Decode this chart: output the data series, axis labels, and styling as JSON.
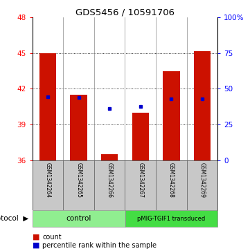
{
  "title": "GDS5456 / 10591706",
  "samples": [
    "GSM1342264",
    "GSM1342265",
    "GSM1342266",
    "GSM1342267",
    "GSM1342268",
    "GSM1342269"
  ],
  "count_values": [
    45.0,
    41.5,
    36.5,
    40.0,
    43.5,
    45.2
  ],
  "percentile_values": [
    41.35,
    41.25,
    40.35,
    40.5,
    41.15,
    41.15
  ],
  "y_min": 36,
  "y_max": 48,
  "y_ticks": [
    36,
    39,
    42,
    45,
    48
  ],
  "y_right_ticks": [
    0,
    25,
    50,
    75,
    100
  ],
  "y_right_labels": [
    "0",
    "25",
    "50",
    "75",
    "100%"
  ],
  "bar_color": "#CC1100",
  "percentile_color": "#0000CC",
  "control_color": "#90EE90",
  "pmig_color": "#44DD44",
  "sample_bg_color": "#C8C8C8",
  "control_label": "control",
  "pmig_label": "pMIG-TGIF1 transduced",
  "protocol_label": "protocol",
  "legend_count": "count",
  "legend_percentile": "percentile rank within the sample",
  "bar_width": 0.55,
  "n_control": 3,
  "n_pmig": 3
}
